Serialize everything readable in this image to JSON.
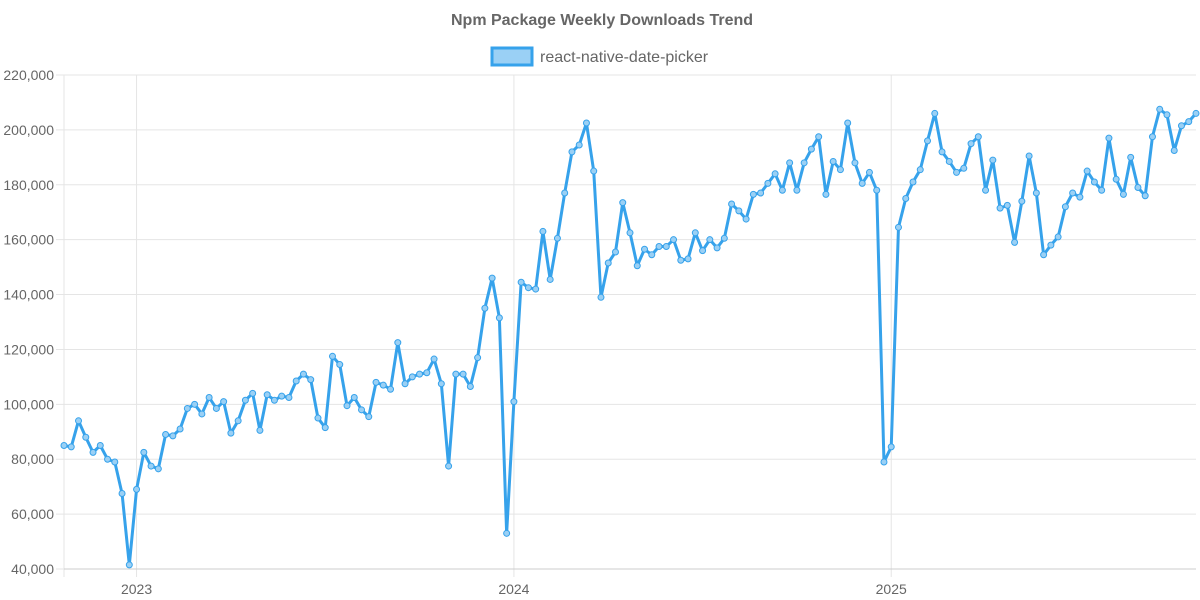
{
  "chart_data": {
    "type": "line",
    "title": "Npm Package Weekly Downloads Trend",
    "xlabel": "",
    "ylabel": "",
    "ylim": [
      40000,
      220000
    ],
    "y_ticks": [
      40000,
      60000,
      80000,
      100000,
      120000,
      140000,
      160000,
      180000,
      200000,
      220000
    ],
    "y_tick_labels": [
      "40,000",
      "60,000",
      "80,000",
      "100,000",
      "120,000",
      "140,000",
      "160,000",
      "180,000",
      "200,000",
      "220,000"
    ],
    "x_tick_labels": [
      "2023",
      "2024",
      "2025"
    ],
    "x_tick_weeks": [
      10,
      62,
      114
    ],
    "grid": true,
    "legend": "top-center",
    "series": [
      {
        "name": "react-native-date-picker",
        "color": "#36a2eb",
        "fill": "#9ad0f5",
        "values": [
          85000,
          84500,
          94000,
          88000,
          82500,
          85000,
          80000,
          79000,
          67500,
          41500,
          69000,
          82500,
          77500,
          76500,
          89000,
          88500,
          91000,
          98500,
          100000,
          96500,
          102500,
          98500,
          101000,
          89500,
          94000,
          101500,
          104000,
          90500,
          103500,
          101500,
          103000,
          102500,
          108500,
          111000,
          109000,
          95000,
          91500,
          117500,
          114500,
          99500,
          102500,
          98000,
          95500,
          108000,
          107000,
          105500,
          122500,
          107500,
          110000,
          111000,
          111500,
          116500,
          107500,
          77500,
          111000,
          111000,
          106500,
          117000,
          135000,
          146000,
          131500,
          53000,
          101000,
          144500,
          142500,
          142000,
          163000,
          145500,
          160500,
          177000,
          192000,
          194500,
          202500,
          185000,
          139000,
          151500,
          155500,
          173500,
          162500,
          150500,
          156500,
          154500,
          157500,
          157500,
          160000,
          152500,
          153000,
          162500,
          156000,
          160000,
          157000,
          160500,
          173000,
          170500,
          167500,
          176500,
          177000,
          180500,
          184000,
          178000,
          188000,
          178000,
          188000,
          193000,
          197500,
          176500,
          188500,
          185500,
          202500,
          188000,
          180500,
          184500,
          178000,
          79000,
          84500,
          164500,
          175000,
          181000,
          185500,
          196000,
          206000,
          192000,
          188500,
          184500,
          186000,
          195000,
          197500,
          178000,
          189000,
          171500,
          172500,
          159000,
          174000,
          190500,
          177000,
          154500,
          158000,
          161000,
          172000,
          177000,
          175500,
          185000,
          181000,
          178000,
          197000,
          182000,
          176500,
          190000,
          179000,
          176000,
          197500,
          207500,
          205500,
          192500,
          201500,
          203000,
          206000
        ]
      }
    ]
  }
}
